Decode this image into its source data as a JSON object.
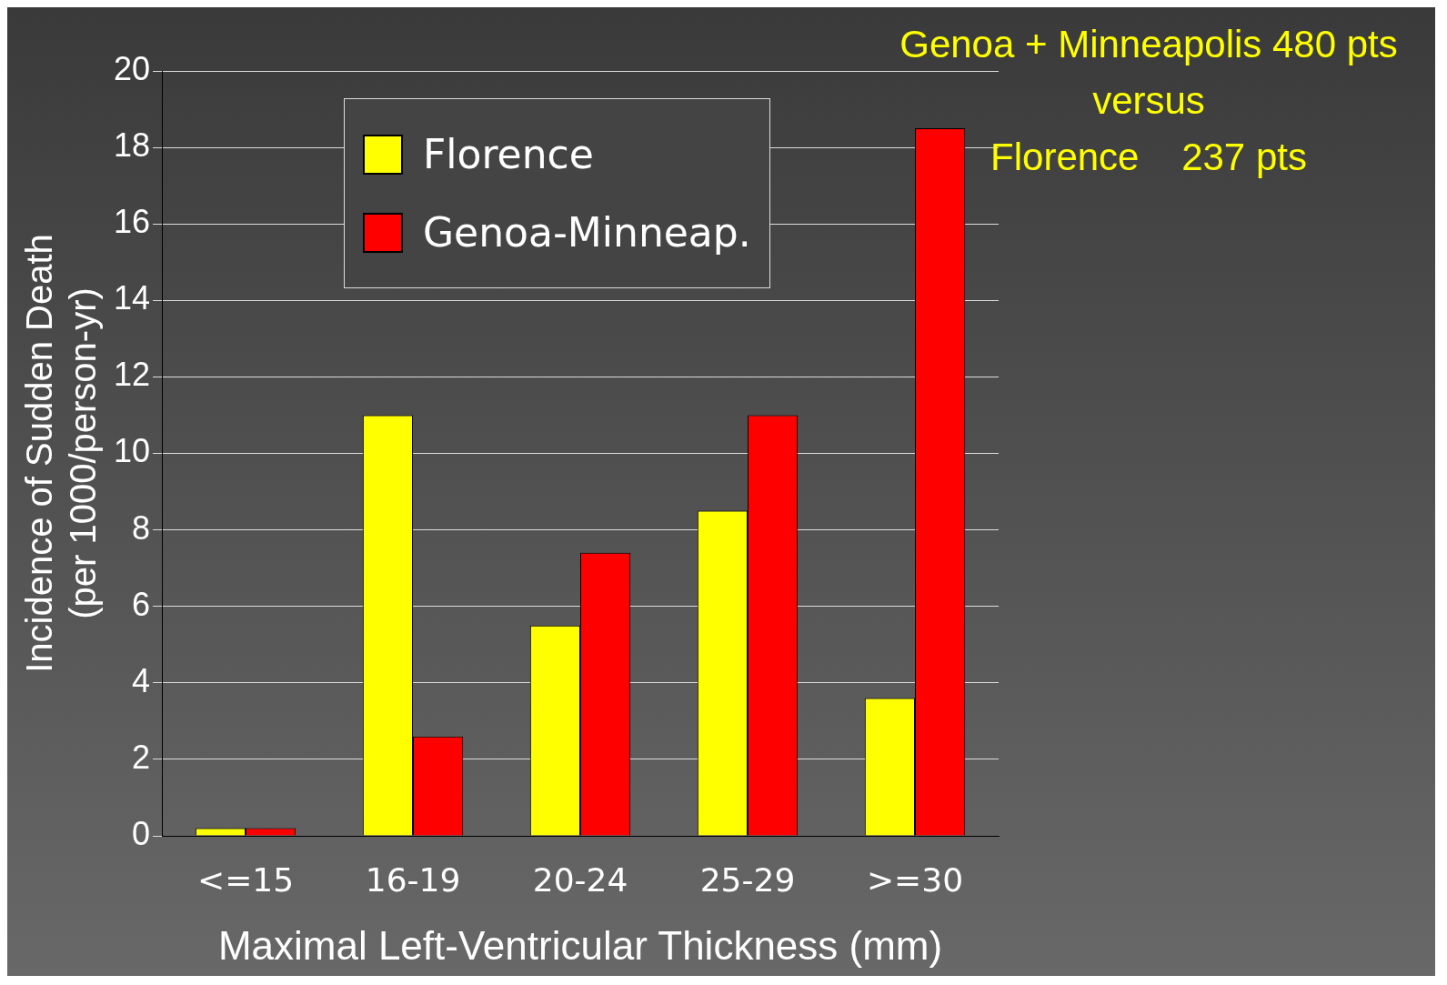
{
  "chart_data": {
    "type": "bar",
    "xlabel": "Maximal Left-Ventricular Thickness (mm)",
    "ylabel": "Incidence of Sudden Death\n(per 1000/person-yr)",
    "categories": [
      "<=15",
      "16-19",
      "20-24",
      "25-29",
      ">=30"
    ],
    "series": [
      {
        "name": "Florence",
        "color": "#ffff00",
        "values": [
          0.2,
          11,
          5.5,
          8.5,
          3.6
        ]
      },
      {
        "name": "Genoa-Minneap.",
        "color": "#ff0000",
        "values": [
          0.2,
          2.6,
          7.4,
          11,
          18.5
        ]
      }
    ],
    "ylim": [
      0,
      20
    ],
    "yticks": [
      0,
      2,
      4,
      6,
      8,
      10,
      12,
      14,
      16,
      18,
      20
    ],
    "grid": "y",
    "legend": "top left",
    "annotations": [
      "Genoa + Minneapolis 480 pts",
      "versus",
      "Florence    237 pts"
    ]
  }
}
